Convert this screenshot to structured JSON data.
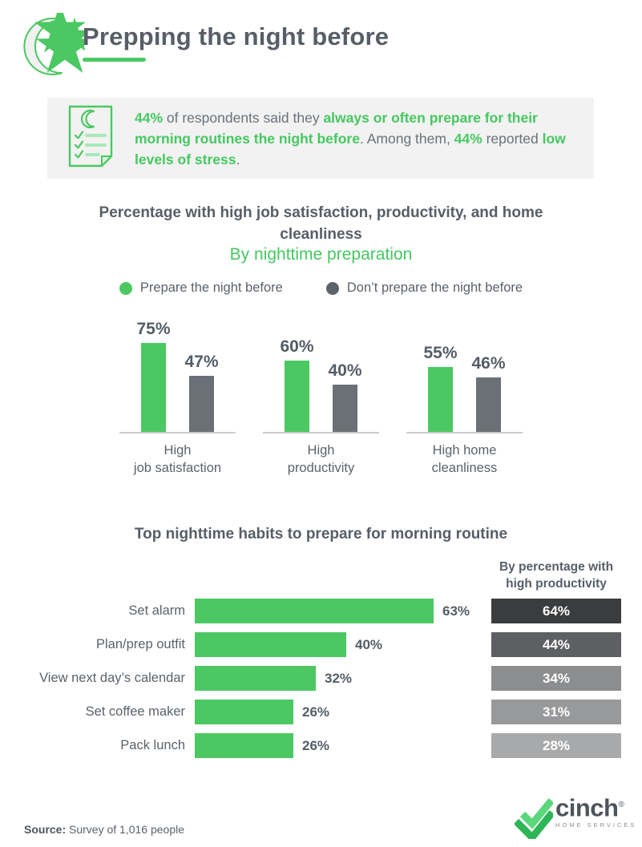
{
  "header": {
    "title": "Prepping the night before"
  },
  "callout": {
    "segments": [
      {
        "text": "44%",
        "em": true
      },
      {
        "text": " of respondents said they ",
        "em": false
      },
      {
        "text": "always or often prepare for their morning routines the night before",
        "em": true
      },
      {
        "text": ". Among them, ",
        "em": false
      },
      {
        "text": "44%",
        "em": true
      },
      {
        "text": " reported ",
        "em": false
      },
      {
        "text": "low levels of stress",
        "em": true
      },
      {
        "text": ".",
        "em": false
      }
    ]
  },
  "chart_data": [
    {
      "type": "grouped_bar",
      "title": "Percentage with high job satisfaction, productivity, and home cleanliness",
      "subtitle": "By nighttime preparation",
      "unit": "%",
      "ylim": [
        0,
        80
      ],
      "grid": false,
      "legend_position": "top",
      "categories": [
        [
          "High",
          "job satisfaction"
        ],
        [
          "High",
          "productivity"
        ],
        [
          "High home",
          "cleanliness"
        ]
      ],
      "series": [
        {
          "name": "Prepare the night before",
          "color": "#4cc862",
          "dot_color": "#4cc862",
          "values": [
            75,
            60,
            55
          ]
        },
        {
          "name": "Don’t prepare the night before",
          "color": "#6a7076",
          "dot_color": "#5d636b",
          "values": [
            47,
            40,
            46
          ]
        }
      ]
    },
    {
      "type": "bar",
      "orientation": "horizontal",
      "title": "Top nighttime habits to prepare for morning routine",
      "unit": "%",
      "xlim": [
        0,
        70
      ],
      "grid": false,
      "bar_color": "#4cc862",
      "categories": [
        "Set alarm",
        "Plan/prep outfit",
        "View next day’s calendar",
        "Set coffee maker",
        "Pack lunch"
      ],
      "values": [
        63,
        40,
        32,
        26,
        26
      ],
      "secondary_column": {
        "header": "By percentage with high productivity",
        "values": [
          64,
          44,
          34,
          31,
          28
        ],
        "colors": [
          "#3b3c3e",
          "#5e5f62",
          "#8c8d8f",
          "#98999b",
          "#a8a9ab"
        ]
      }
    }
  ],
  "footer": {
    "source_label": "Source:",
    "source_text": " Survey of 1,016 people",
    "brand": {
      "name": "cinch",
      "registered": "®",
      "tagline": "HOME SERVICES"
    }
  },
  "icons": {
    "header_icon": "moon-and-stars-icon",
    "callout_icon": "checklist-note-icon",
    "brand_icon": "double-check-icon"
  },
  "colors": {
    "accent_green": "#4cc862",
    "green_text": "#46c861",
    "dark_text": "#575e67",
    "body_text": "#5b6269",
    "gray_bar": "#6a7076",
    "callout_bg": "#f2f2f2",
    "axis_line": "#c9cdd1"
  }
}
